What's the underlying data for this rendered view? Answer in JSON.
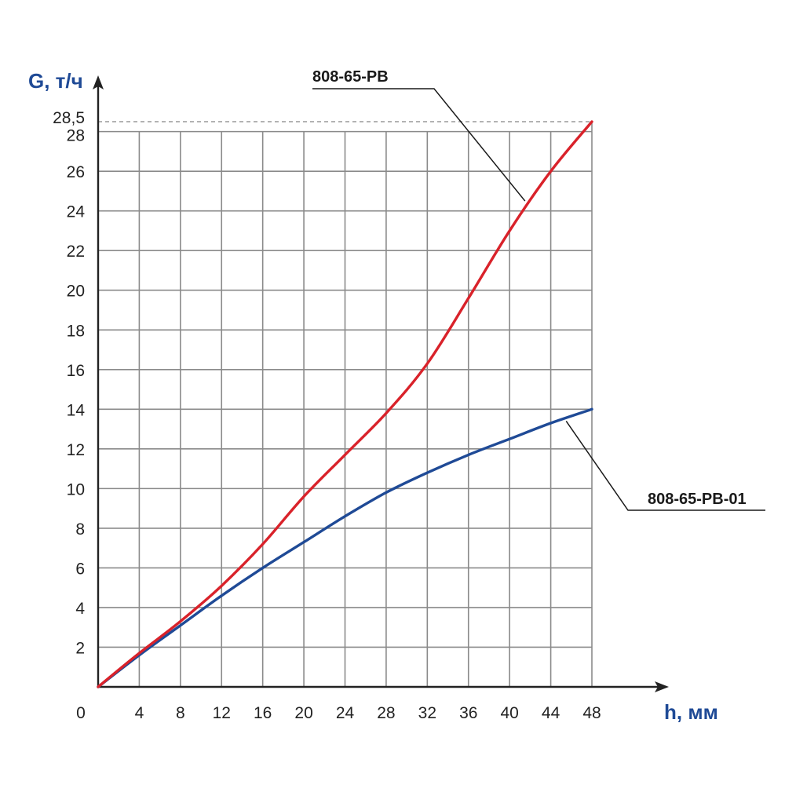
{
  "chart_data": {
    "type": "line",
    "title": "",
    "xlabel": "h, мм",
    "ylabel": "G, т/ч",
    "xlim": [
      0,
      48
    ],
    "ylim": [
      0,
      28.5
    ],
    "x_ticks": [
      0,
      4,
      8,
      12,
      16,
      20,
      24,
      28,
      32,
      36,
      40,
      44,
      48
    ],
    "x_tick_labels": [
      "0",
      "4",
      "8",
      "12",
      "16",
      "20",
      "24",
      "28",
      "32",
      "36",
      "40",
      "44",
      "48"
    ],
    "y_ticks": [
      2,
      4,
      6,
      8,
      10,
      12,
      14,
      16,
      18,
      20,
      22,
      24,
      26,
      28
    ],
    "y_tick_labels": [
      "2",
      "4",
      "6",
      "8",
      "10",
      "12",
      "14",
      "16",
      "18",
      "20",
      "22",
      "24",
      "26",
      "28"
    ],
    "y_max_marker": {
      "value": 28.5,
      "label": "28,5"
    },
    "grid": true,
    "colors": {
      "axis_title": "#1f4a96",
      "grid": "#8a8a8a",
      "axis": "#222222"
    },
    "series": [
      {
        "name": "808-65-РВ",
        "color": "#d9222a",
        "x": [
          0,
          4,
          8,
          12,
          16,
          20,
          24,
          28,
          32,
          36,
          40,
          44,
          48
        ],
        "y": [
          0,
          1.7,
          3.3,
          5.1,
          7.2,
          9.6,
          11.7,
          13.8,
          16.3,
          19.6,
          23.0,
          26.0,
          28.5
        ]
      },
      {
        "name": "808-65-РВ-01",
        "color": "#1f4a96",
        "x": [
          0,
          4,
          8,
          12,
          16,
          20,
          24,
          28,
          32,
          36,
          40,
          44,
          48
        ],
        "y": [
          0,
          1.6,
          3.1,
          4.6,
          6.0,
          7.3,
          8.6,
          9.8,
          10.8,
          11.7,
          12.5,
          13.3,
          14.0
        ]
      }
    ],
    "annotations": [
      {
        "series": 0,
        "text": "808-65-РВ",
        "anchor_x": 41.5,
        "anchor_y": 24.5
      },
      {
        "series": 1,
        "text": "808-65-РВ-01",
        "anchor_x": 45.5,
        "anchor_y": 13.4
      }
    ]
  }
}
